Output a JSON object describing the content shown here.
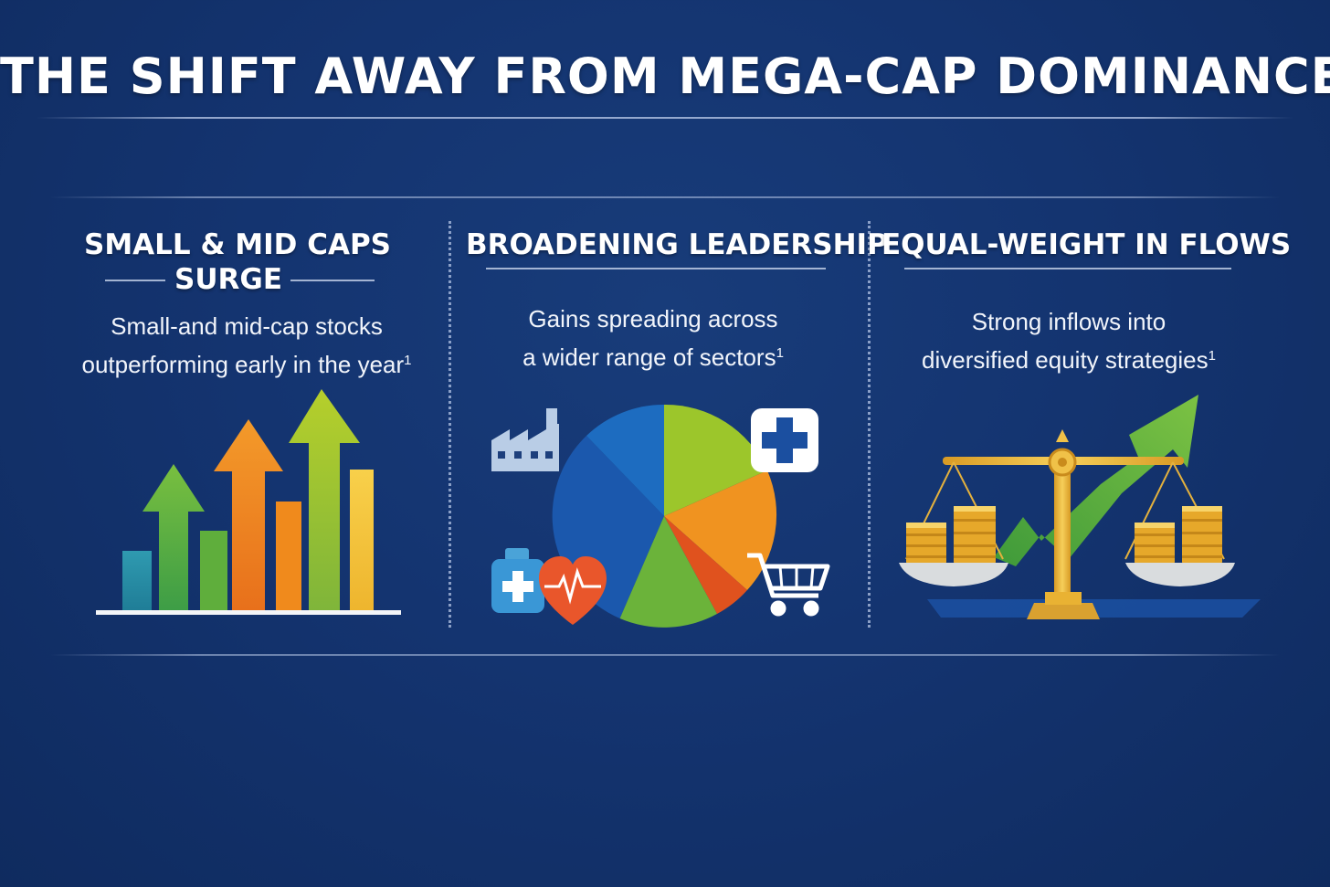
{
  "title": "THE SHIFT AWAY FROM MEGA-CAP DOMINANCE",
  "panels": [
    {
      "title_line1": "SMALL & MID CAPS",
      "title_line2": "SURGE",
      "desc_line1": "Small-and mid-cap stocks",
      "desc_line2": "outperforming early in the year",
      "footnote": "1",
      "icon": "rising-bar-chart-with-arrows"
    },
    {
      "title_line1": "BROADENING LEADERSHIP",
      "desc_line1": "Gains spreading across",
      "desc_line2": "a wider range of sectors",
      "footnote": "1",
      "icons": [
        "factory-icon",
        "medical-cross-icon",
        "medicine-bottle-icon",
        "heart-pulse-icon",
        "shopping-cart-icon",
        "sector-pie-chart"
      ]
    },
    {
      "title_line1": "EQUAL-WEIGHT IN FLOWS",
      "desc_line1": "Strong inflows into",
      "desc_line2": "diversified equity strategies",
      "footnote": "1",
      "icons": [
        "balance-scale-icon",
        "coin-stack-icon",
        "rising-arrow-icon"
      ]
    }
  ],
  "colors": {
    "background": "#143470",
    "green": "#6bb33a",
    "lime": "#9cc62b",
    "orange": "#f08a1c",
    "yellow": "#f6c73a",
    "teal": "#2a8fa8",
    "blue": "#1e63b8",
    "red": "#e0521e",
    "gold": "#e9b233"
  }
}
